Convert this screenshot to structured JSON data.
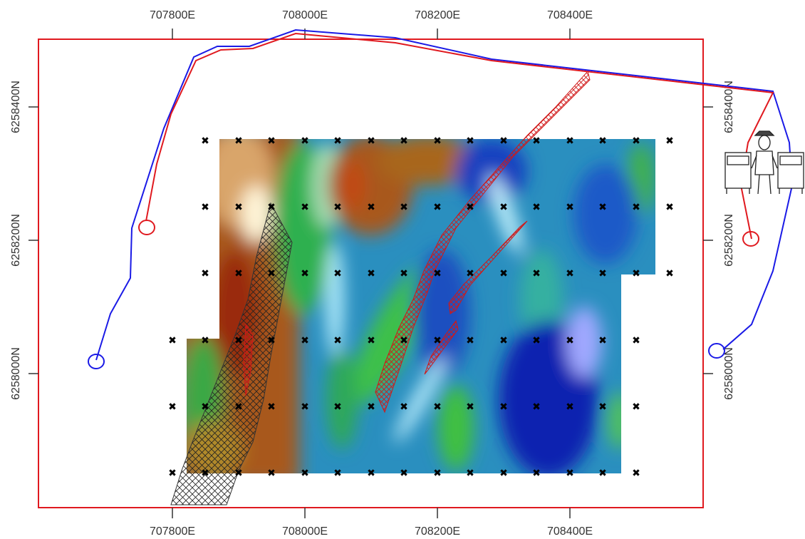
{
  "map": {
    "easting_ticks": [
      "707800E",
      "708000E",
      "708200E",
      "708400E"
    ],
    "northing_ticks": [
      "6258400N",
      "6258200N",
      "6258000N"
    ],
    "colors": {
      "frame": "#e0191f",
      "blue_track": "#1a1ae6",
      "red_track": "#e0191f",
      "grid_marker": "#000000"
    },
    "grid_marker_symbol": "✖",
    "legend_icon": "surveyor-with-instruments-icon"
  }
}
